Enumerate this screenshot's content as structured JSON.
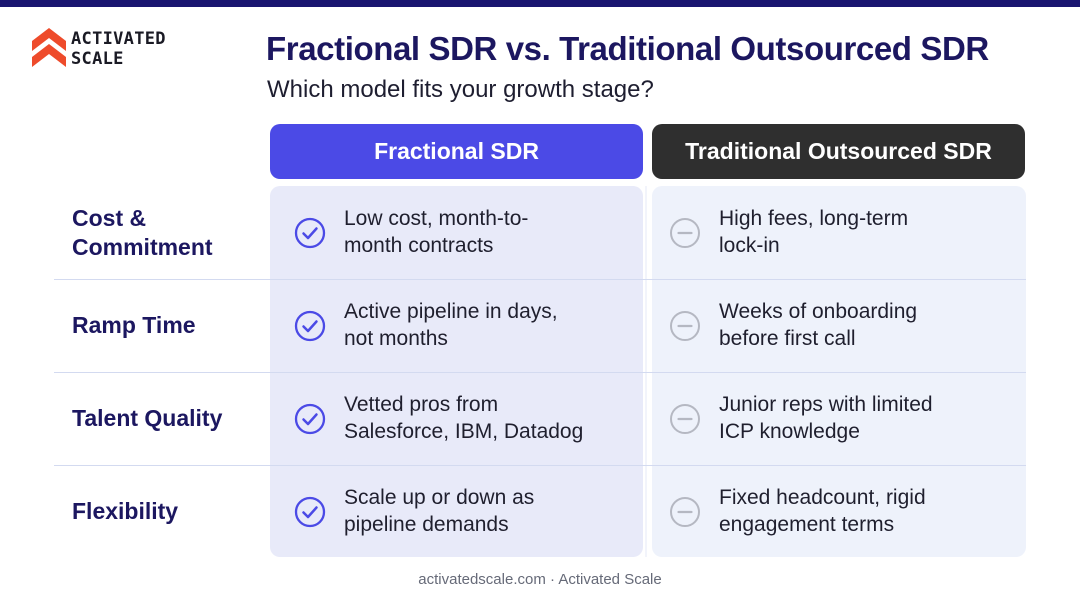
{
  "brand": {
    "logo_line1": "ACTIVATED",
    "logo_line2": "SCALE",
    "accent_color": "#4b4ae6",
    "logo_color": "#ee4b2b"
  },
  "header": {
    "title": "Fractional SDR vs. Traditional Outsourced SDR",
    "subtitle": "Which model fits your growth stage?"
  },
  "columns": {
    "fractional": "Fractional SDR",
    "traditional": "Traditional Outsourced SDR"
  },
  "rows": [
    {
      "label_lines": [
        "Cost &",
        "Commitment"
      ],
      "fractional_lines": [
        "Low cost, month-to-",
        "month contracts"
      ],
      "traditional_lines": [
        "High fees, long-term",
        "lock-in"
      ]
    },
    {
      "label_lines": [
        "Ramp Time"
      ],
      "fractional_lines": [
        "Active pipeline in days,",
        "not months"
      ],
      "traditional_lines": [
        "Weeks of onboarding",
        "before first call"
      ]
    },
    {
      "label_lines": [
        "Talent Quality"
      ],
      "fractional_lines": [
        "Vetted pros from",
        "Salesforce, IBM, Datadog"
      ],
      "traditional_lines": [
        "Junior reps with limited",
        "ICP knowledge"
      ]
    },
    {
      "label_lines": [
        "Flexibility"
      ],
      "fractional_lines": [
        "Scale up or down as",
        "pipeline demands"
      ],
      "traditional_lines": [
        "Fixed headcount, rigid",
        "engagement terms"
      ]
    }
  ],
  "icons": {
    "fractional": "check-circle-icon",
    "traditional": "minus-circle-icon"
  },
  "footer": "activatedscale.com · Activated Scale"
}
